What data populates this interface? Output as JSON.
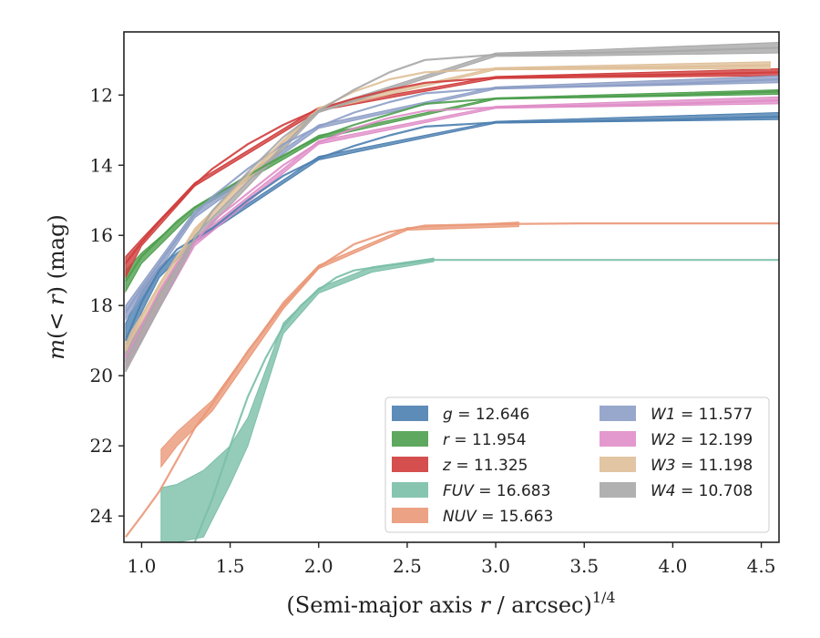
{
  "chart_data": {
    "type": "line",
    "title": "",
    "xlabel": {
      "prefix": "(Semi-major axis ",
      "var": "r",
      "suffix": " / arcsec)",
      "power": "1/4"
    },
    "ylabel": {
      "prefix": "m(",
      "mid": "< ",
      "var": "r",
      "suffix": ") (mag)"
    },
    "xlim": [
      0.9,
      4.6
    ],
    "ylim": [
      24.75,
      10.2
    ],
    "y_inverted": true,
    "grid": false,
    "legend_position": "lower-right",
    "x_ticks": [
      {
        "value": 1.0,
        "label": "1.0"
      },
      {
        "value": 1.5,
        "label": "1.5"
      },
      {
        "value": 2.0,
        "label": "2.0"
      },
      {
        "value": 2.5,
        "label": "2.5"
      },
      {
        "value": 3.0,
        "label": "3.0"
      },
      {
        "value": 3.5,
        "label": "3.5"
      },
      {
        "value": 4.0,
        "label": "4.0"
      },
      {
        "value": 4.5,
        "label": "4.5"
      }
    ],
    "y_ticks": [
      {
        "value": 12,
        "label": "12"
      },
      {
        "value": 14,
        "label": "14"
      },
      {
        "value": 16,
        "label": "16"
      },
      {
        "value": 18,
        "label": "18"
      },
      {
        "value": 20,
        "label": "20"
      },
      {
        "value": 22,
        "label": "22"
      },
      {
        "value": 24,
        "label": "24"
      }
    ],
    "series": [
      {
        "name": "g",
        "value_text": "12.646",
        "color": "#4c7fb0",
        "points": [
          [
            0.91,
            19.0
          ],
          [
            1.0,
            17.9
          ],
          [
            1.1,
            17.0
          ],
          [
            1.2,
            16.4
          ],
          [
            1.4,
            15.8
          ],
          [
            1.6,
            15.0
          ],
          [
            1.8,
            14.3
          ],
          [
            2.0,
            13.8
          ],
          [
            2.2,
            13.45
          ],
          [
            2.4,
            13.15
          ],
          [
            2.6,
            12.9
          ],
          [
            3.0,
            12.78
          ],
          [
            3.5,
            12.74
          ],
          [
            4.0,
            12.7
          ],
          [
            4.6,
            12.62
          ]
        ],
        "band": [
          [
            0.91,
            18.5,
            19.5
          ],
          [
            1.0,
            17.6,
            18.2
          ],
          [
            1.1,
            16.9,
            17.2
          ],
          [
            1.3,
            16.1,
            16.2
          ],
          [
            2.0,
            13.75,
            13.85
          ],
          [
            3.0,
            12.75,
            12.8
          ],
          [
            4.6,
            12.5,
            12.7
          ]
        ]
      },
      {
        "name": "r",
        "value_text": "11.954",
        "color": "#4e9f4e",
        "points": [
          [
            0.91,
            17.3
          ],
          [
            1.0,
            16.6
          ],
          [
            1.1,
            16.1
          ],
          [
            1.2,
            15.6
          ],
          [
            1.3,
            15.2
          ],
          [
            1.5,
            14.6
          ],
          [
            1.7,
            14.0
          ],
          [
            1.9,
            13.45
          ],
          [
            2.0,
            13.2
          ],
          [
            2.2,
            12.85
          ],
          [
            2.4,
            12.55
          ],
          [
            2.6,
            12.25
          ],
          [
            3.0,
            12.1
          ],
          [
            3.5,
            12.05
          ],
          [
            4.0,
            12.0
          ],
          [
            4.6,
            11.9
          ]
        ],
        "band": [
          [
            0.91,
            17.0,
            17.6
          ],
          [
            1.0,
            16.5,
            16.8
          ],
          [
            1.3,
            15.2,
            15.3
          ],
          [
            2.0,
            13.15,
            13.25
          ],
          [
            3.0,
            12.08,
            12.12
          ],
          [
            4.6,
            11.85,
            11.98
          ]
        ]
      },
      {
        "name": "z",
        "value_text": "11.325",
        "color": "#d03c3c",
        "points": [
          [
            0.91,
            16.8
          ],
          [
            1.0,
            16.2
          ],
          [
            1.1,
            15.6
          ],
          [
            1.2,
            15.1
          ],
          [
            1.3,
            14.55
          ],
          [
            1.4,
            14.1
          ],
          [
            1.6,
            13.4
          ],
          [
            1.8,
            12.85
          ],
          [
            2.0,
            12.4
          ],
          [
            2.2,
            12.1
          ],
          [
            2.4,
            11.85
          ],
          [
            2.6,
            11.65
          ],
          [
            3.0,
            11.5
          ],
          [
            3.5,
            11.45
          ],
          [
            4.0,
            11.42
          ],
          [
            4.6,
            11.35
          ]
        ],
        "band": [
          [
            0.91,
            16.6,
            17.2
          ],
          [
            1.0,
            16.1,
            16.3
          ],
          [
            1.3,
            14.5,
            14.6
          ],
          [
            2.0,
            12.35,
            12.45
          ],
          [
            3.0,
            11.47,
            11.53
          ],
          [
            4.6,
            11.25,
            11.45
          ]
        ]
      },
      {
        "name": "W1",
        "value_text": "11.577",
        "color": "#8d9ec6",
        "points": [
          [
            0.91,
            18.2
          ],
          [
            1.0,
            17.5
          ],
          [
            1.1,
            16.8
          ],
          [
            1.2,
            16.1
          ],
          [
            1.3,
            15.4
          ],
          [
            1.4,
            14.9
          ],
          [
            1.6,
            14.1
          ],
          [
            1.8,
            13.4
          ],
          [
            2.0,
            12.9
          ],
          [
            2.2,
            12.5
          ],
          [
            2.4,
            12.2
          ],
          [
            2.6,
            11.95
          ],
          [
            3.0,
            11.8
          ],
          [
            3.5,
            11.75
          ],
          [
            4.0,
            11.68
          ],
          [
            4.6,
            11.55
          ]
        ],
        "band": [
          [
            0.91,
            18.0,
            18.4
          ],
          [
            1.3,
            15.3,
            15.5
          ],
          [
            2.0,
            12.85,
            12.95
          ],
          [
            3.0,
            11.77,
            11.83
          ],
          [
            4.6,
            11.45,
            11.65
          ]
        ]
      },
      {
        "name": "W2",
        "value_text": "12.199",
        "color": "#e08ec8",
        "points": [
          [
            0.91,
            19.5
          ],
          [
            1.0,
            18.6
          ],
          [
            1.1,
            17.6
          ],
          [
            1.2,
            16.8
          ],
          [
            1.3,
            16.2
          ],
          [
            1.4,
            15.6
          ],
          [
            1.6,
            14.8
          ],
          [
            1.8,
            14.0
          ],
          [
            2.0,
            13.35
          ],
          [
            2.2,
            12.95
          ],
          [
            2.4,
            12.65
          ],
          [
            2.6,
            12.45
          ],
          [
            3.0,
            12.35
          ],
          [
            3.5,
            12.3
          ],
          [
            4.0,
            12.25
          ],
          [
            4.6,
            12.15
          ]
        ],
        "band": [
          [
            0.91,
            19.2,
            19.8
          ],
          [
            1.3,
            16.1,
            16.3
          ],
          [
            2.0,
            13.3,
            13.4
          ],
          [
            3.0,
            12.32,
            12.38
          ],
          [
            4.6,
            12.05,
            12.25
          ]
        ]
      },
      {
        "name": "W3",
        "value_text": "11.198",
        "color": "#dfbf98",
        "points": [
          [
            0.91,
            19.3
          ],
          [
            1.0,
            18.3
          ],
          [
            1.1,
            17.4
          ],
          [
            1.2,
            16.6
          ],
          [
            1.3,
            15.9
          ],
          [
            1.4,
            15.3
          ],
          [
            1.6,
            14.3
          ],
          [
            1.8,
            13.3
          ],
          [
            2.0,
            12.4
          ],
          [
            2.2,
            11.9
          ],
          [
            2.4,
            11.55
          ],
          [
            2.6,
            11.35
          ],
          [
            3.0,
            11.25
          ],
          [
            3.5,
            11.22
          ],
          [
            4.0,
            11.2
          ],
          [
            4.55,
            11.15
          ]
        ],
        "band": [
          [
            0.91,
            19.0,
            19.6
          ],
          [
            1.3,
            15.8,
            16.0
          ],
          [
            2.0,
            12.35,
            12.45
          ],
          [
            3.0,
            11.22,
            11.28
          ],
          [
            4.55,
            11.05,
            11.25
          ]
        ]
      },
      {
        "name": "W4",
        "value_text": "10.708",
        "color": "#a8a8a8",
        "points": [
          [
            0.91,
            19.6
          ],
          [
            1.0,
            18.7
          ],
          [
            1.1,
            17.7
          ],
          [
            1.2,
            16.9
          ],
          [
            1.3,
            16.1
          ],
          [
            1.4,
            15.3
          ],
          [
            1.6,
            14.2
          ],
          [
            1.8,
            13.2
          ],
          [
            2.0,
            12.45
          ],
          [
            2.2,
            11.85
          ],
          [
            2.4,
            11.35
          ],
          [
            2.6,
            11.0
          ],
          [
            3.0,
            10.85
          ],
          [
            3.5,
            10.8
          ],
          [
            4.0,
            10.75
          ],
          [
            4.6,
            10.65
          ]
        ],
        "band": [
          [
            0.91,
            19.3,
            19.9
          ],
          [
            1.3,
            16.0,
            16.2
          ],
          [
            2.0,
            12.4,
            12.5
          ],
          [
            3.0,
            10.8,
            10.9
          ],
          [
            3.5,
            10.72,
            10.88
          ],
          [
            4.6,
            10.5,
            10.8
          ]
        ]
      },
      {
        "name": "FUV",
        "value_text": "16.683",
        "color": "#7bbfa8",
        "points": [
          [
            1.3,
            24.75
          ],
          [
            1.4,
            23.5
          ],
          [
            1.5,
            22.0
          ],
          [
            1.6,
            20.6
          ],
          [
            1.7,
            19.5
          ],
          [
            1.8,
            18.6
          ],
          [
            1.9,
            18.0
          ],
          [
            2.0,
            17.55
          ],
          [
            2.1,
            17.2
          ],
          [
            2.2,
            17.0
          ],
          [
            2.4,
            16.85
          ],
          [
            2.65,
            16.7
          ],
          [
            3.0,
            16.7
          ],
          [
            3.5,
            16.7
          ],
          [
            4.0,
            16.7
          ],
          [
            4.6,
            16.7
          ]
        ],
        "band": [
          [
            1.11,
            23.2,
            24.75
          ],
          [
            1.2,
            23.1,
            24.75
          ],
          [
            1.35,
            22.7,
            24.6
          ],
          [
            1.5,
            22.0,
            23.1
          ],
          [
            1.6,
            21.2,
            22.0
          ],
          [
            1.8,
            18.5,
            18.8
          ],
          [
            2.0,
            17.5,
            17.65
          ],
          [
            2.3,
            16.9,
            17.05
          ],
          [
            2.65,
            16.65,
            16.75
          ]
        ]
      },
      {
        "name": "NUV",
        "value_text": "15.663",
        "color": "#ea9878",
        "points": [
          [
            0.91,
            24.6
          ],
          [
            1.0,
            24.0
          ],
          [
            1.1,
            23.3
          ],
          [
            1.2,
            22.4
          ],
          [
            1.3,
            21.5
          ],
          [
            1.4,
            20.8
          ],
          [
            1.6,
            19.3
          ],
          [
            1.8,
            18.0
          ],
          [
            2.0,
            16.9
          ],
          [
            2.2,
            16.25
          ],
          [
            2.4,
            15.9
          ],
          [
            2.6,
            15.72
          ],
          [
            3.0,
            15.68
          ],
          [
            3.5,
            15.66
          ],
          [
            4.0,
            15.66
          ],
          [
            4.6,
            15.66
          ]
        ],
        "band": [
          [
            1.11,
            22.1,
            22.6
          ],
          [
            1.2,
            21.6,
            22.0
          ],
          [
            1.4,
            20.7,
            21.0
          ],
          [
            1.8,
            17.9,
            18.1
          ],
          [
            2.0,
            16.85,
            16.95
          ],
          [
            2.5,
            15.78,
            15.85
          ],
          [
            3.13,
            15.62,
            15.75
          ]
        ]
      }
    ],
    "legend_columns": [
      [
        "g",
        "r",
        "z",
        "FUV",
        "NUV"
      ],
      [
        "W1",
        "W2",
        "W3",
        "W4"
      ]
    ]
  }
}
